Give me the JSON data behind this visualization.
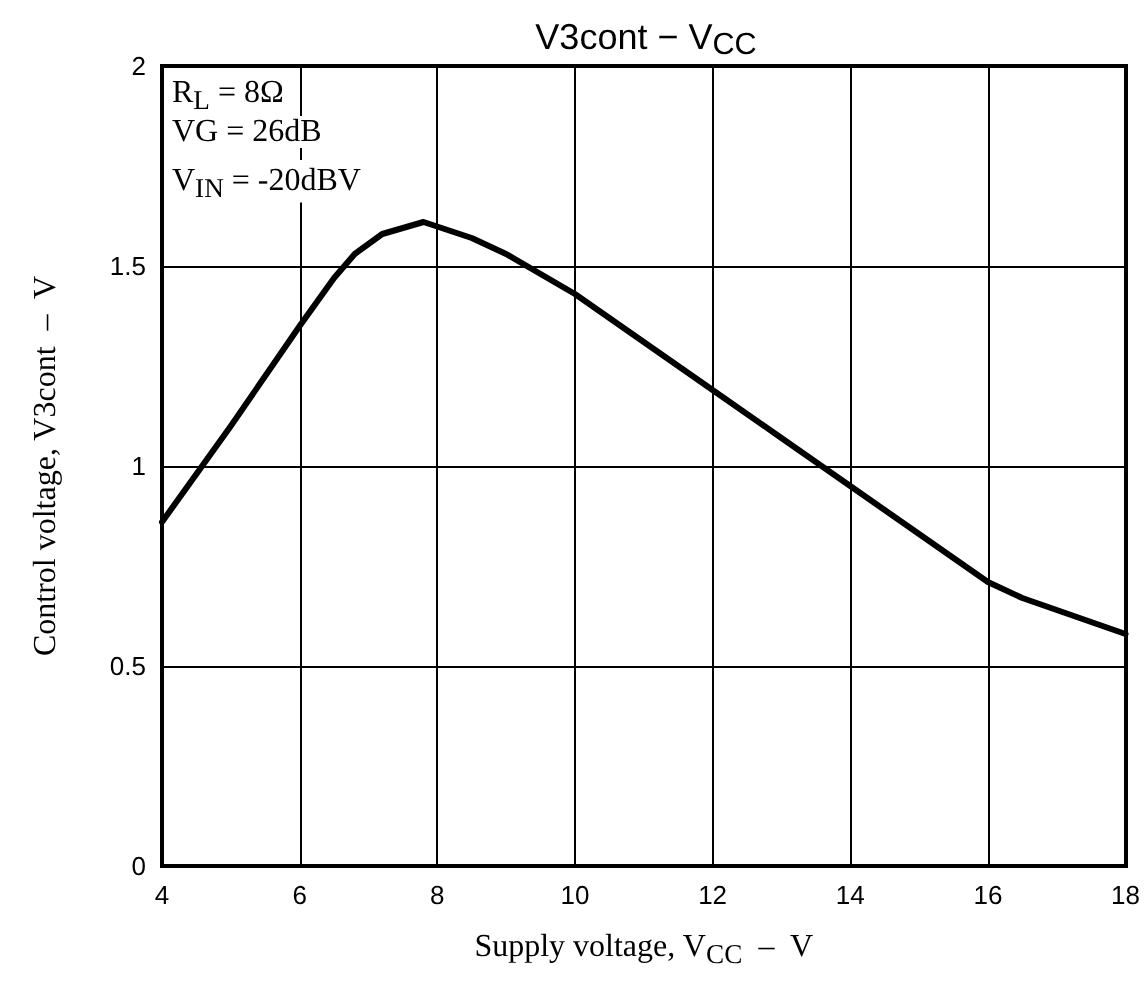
{
  "chart_data": {
    "type": "line",
    "title": "V3cont − V$_{CC}$",
    "xlabel": "Supply voltage, V$_{CC}$  –  V",
    "ylabel": "Control voltage, V3cont  –  V",
    "annotations": [
      "R$_{L}$ = 8Ω",
      "VG = 26dB",
      "V$_{IN}$ = -20dBV"
    ],
    "x": [
      4,
      5,
      6,
      6.5,
      6.8,
      7.2,
      7.8,
      8.5,
      9,
      10,
      11,
      12,
      13,
      14,
      15,
      16,
      16.5,
      17,
      18
    ],
    "series": [
      {
        "color": "#000000",
        "values": [
          0.86,
          1.1,
          1.35,
          1.47,
          1.53,
          1.58,
          1.61,
          1.57,
          1.53,
          1.43,
          1.31,
          1.19,
          1.07,
          0.95,
          0.83,
          0.71,
          0.67,
          0.64,
          0.58
        ]
      }
    ],
    "xlim": [
      4,
      18
    ],
    "xticks": [
      4,
      6,
      8,
      10,
      12,
      14,
      16,
      18
    ],
    "ylim": [
      0,
      2
    ],
    "yticks": [
      0,
      0.5,
      1,
      1.5,
      2
    ],
    "grid": true,
    "marker": "none",
    "line_style": "solid"
  }
}
